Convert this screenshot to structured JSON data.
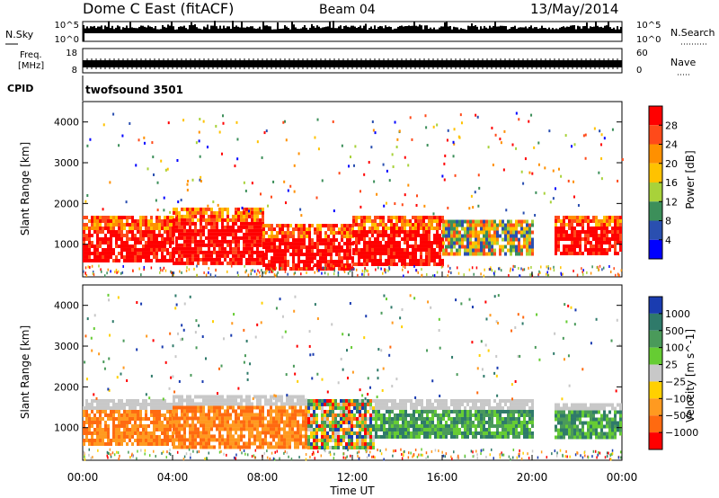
{
  "header": {
    "station": "Dome C East (fitACF)",
    "beam": "Beam 04",
    "date": "13/May/2014"
  },
  "nsky_panel": {
    "left_label": "N.Sky",
    "right_label": "N.Search",
    "left_ticks": [
      "10^5",
      "10^0"
    ],
    "right_ticks": [
      "10^5",
      "10^0"
    ]
  },
  "freq_panel": {
    "left_label_line1": "Freq.",
    "left_label_line2": "[MHz]",
    "right_label": "Nave",
    "left_ticks": [
      "18",
      "8"
    ],
    "right_ticks": [
      "60",
      "0"
    ]
  },
  "cpid_panel": {
    "label": "CPID",
    "program": "twofsound 3501"
  },
  "chart_data": [
    {
      "type": "heatmap",
      "quantity": "power",
      "ylabel": "Slant Range [km]",
      "ylim": [
        200,
        4500
      ],
      "yticks": [
        "1000",
        "2000",
        "3000",
        "4000"
      ],
      "colorbar_label": "Power [dB]",
      "colorbar_ticks": [
        "28",
        "24",
        "20",
        "16",
        "12",
        "8",
        "4"
      ],
      "colorbar_colors": [
        "#ff0000",
        "#ff4a1a",
        "#ff9000",
        "#ffc200",
        "#a8d23a",
        "#3c8f5a",
        "#2a4fb0",
        "#0000ff"
      ],
      "bands": [
        {
          "t_start": 0,
          "t_end": 4,
          "r_low": 600,
          "r_high": 1700,
          "level": "high"
        },
        {
          "t_start": 4,
          "t_end": 8,
          "r_low": 500,
          "r_high": 1900,
          "level": "high"
        },
        {
          "t_start": 8,
          "t_end": 12,
          "r_low": 400,
          "r_high": 1500,
          "level": "high"
        },
        {
          "t_start": 12,
          "t_end": 16,
          "r_low": 500,
          "r_high": 1700,
          "level": "high"
        },
        {
          "t_start": 16,
          "t_end": 20,
          "r_low": 800,
          "r_high": 1600,
          "level": "medium"
        },
        {
          "t_start": 21,
          "t_end": 24,
          "r_low": 800,
          "r_high": 1700,
          "level": "high"
        }
      ]
    },
    {
      "type": "heatmap",
      "quantity": "velocity",
      "xlabel": "Time UT",
      "ylabel": "Slant Range [km]",
      "ylim": [
        200,
        4500
      ],
      "yticks": [
        "1000",
        "2000",
        "3000",
        "4000"
      ],
      "xticks": [
        "00:00",
        "04:00",
        "08:00",
        "12:00",
        "16:00",
        "20:00",
        "00:00"
      ],
      "colorbar_label": "Velocity [m s^-1]",
      "colorbar_ticks": [
        "1000",
        "500",
        "100",
        "25",
        "−25",
        "−100",
        "−500",
        "−1000"
      ],
      "colorbar_colors": [
        "#1a3cb0",
        "#2f7a6a",
        "#4a9a5a",
        "#66cc33",
        "#c8c8c8",
        "#ffd000",
        "#ff9a20",
        "#ff6a10",
        "#ff0000"
      ],
      "bands": [
        {
          "t_start": 0,
          "t_end": 4,
          "r_low": 600,
          "r_high": 1700,
          "level": "negative"
        },
        {
          "t_start": 4,
          "t_end": 10,
          "r_low": 500,
          "r_high": 1800,
          "level": "negative"
        },
        {
          "t_start": 10,
          "t_end": 13,
          "r_low": 500,
          "r_high": 1700,
          "level": "mixed"
        },
        {
          "t_start": 13,
          "t_end": 20,
          "r_low": 800,
          "r_high": 1700,
          "level": "positive"
        },
        {
          "t_start": 21,
          "t_end": 24,
          "r_low": 800,
          "r_high": 1600,
          "level": "positive"
        }
      ]
    }
  ]
}
